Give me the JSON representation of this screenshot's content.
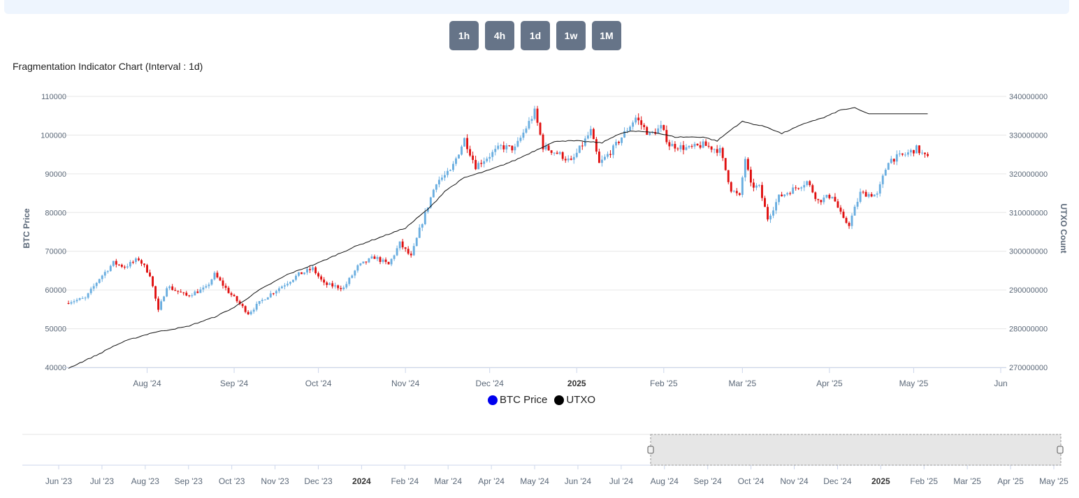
{
  "interval_buttons": [
    "1h",
    "4h",
    "1d",
    "1w",
    "1M"
  ],
  "chart_data": {
    "type": "candlestick",
    "title": "Fragmentation Indicator Chart (Interval : 1d)",
    "ylabel_left": "BTC Price",
    "ylabel_right": "UTXO Count",
    "y_left_range": [
      40000,
      110000
    ],
    "y_right_range": [
      270000000,
      340000000
    ],
    "y_left_ticks": [
      "110000",
      "100000",
      "90000",
      "80000",
      "70000",
      "60000",
      "50000",
      "40000"
    ],
    "y_right_ticks": [
      "340000000",
      "330000000",
      "320000000",
      "310000000",
      "300000000",
      "290000000",
      "280000000",
      "270000000"
    ],
    "x_range": [
      "2024-07-04",
      "2025-06-01"
    ],
    "x_ticks": [
      {
        "date": "2024-08-01",
        "label": "Aug '24"
      },
      {
        "date": "2024-09-01",
        "label": "Sep '24"
      },
      {
        "date": "2024-10-01",
        "label": "Oct '24"
      },
      {
        "date": "2024-11-01",
        "label": "Nov '24"
      },
      {
        "date": "2024-12-01",
        "label": "Dec '24"
      },
      {
        "date": "2025-01-01",
        "label": "2025",
        "bold": true
      },
      {
        "date": "2025-02-01",
        "label": "Feb '25"
      },
      {
        "date": "2025-03-01",
        "label": "Mar '25"
      },
      {
        "date": "2025-04-01",
        "label": "Apr '25"
      },
      {
        "date": "2025-05-01",
        "label": "May '25"
      },
      {
        "date": "2025-06-01",
        "label": "Jun"
      }
    ],
    "grid": true,
    "legend": {
      "position": "bottom-center",
      "items": [
        {
          "name": "BTC Price",
          "color": "#0000ee"
        },
        {
          "name": "UTXO",
          "color": "#000000"
        }
      ]
    },
    "candle_colors": {
      "up": "#6aaee0",
      "down": "#e01010"
    },
    "btc_close_keypoints": [
      [
        "2024-07-04",
        57000
      ],
      [
        "2024-07-10",
        57800
      ],
      [
        "2024-07-15",
        63000
      ],
      [
        "2024-07-20",
        67000
      ],
      [
        "2024-07-24",
        66000
      ],
      [
        "2024-07-29",
        68000
      ],
      [
        "2024-08-02",
        64000
      ],
      [
        "2024-08-05",
        54500
      ],
      [
        "2024-08-08",
        61000
      ],
      [
        "2024-08-15",
        58500
      ],
      [
        "2024-08-22",
        60500
      ],
      [
        "2024-08-25",
        64000
      ],
      [
        "2024-08-30",
        59500
      ],
      [
        "2024-09-06",
        54000
      ],
      [
        "2024-09-12",
        58000
      ],
      [
        "2024-09-18",
        61000
      ],
      [
        "2024-09-24",
        64000
      ],
      [
        "2024-09-29",
        65500
      ],
      [
        "2024-10-03",
        61500
      ],
      [
        "2024-10-10",
        60500
      ],
      [
        "2024-10-15",
        66000
      ],
      [
        "2024-10-21",
        68500
      ],
      [
        "2024-10-26",
        66500
      ],
      [
        "2024-10-30",
        72000
      ],
      [
        "2024-11-03",
        68500
      ],
      [
        "2024-11-06",
        75500
      ],
      [
        "2024-11-12",
        88000
      ],
      [
        "2024-11-17",
        90500
      ],
      [
        "2024-11-22",
        99000
      ],
      [
        "2024-11-26",
        92000
      ],
      [
        "2024-12-05",
        97000
      ],
      [
        "2024-12-10",
        96500
      ],
      [
        "2024-12-17",
        106000
      ],
      [
        "2024-12-20",
        97000
      ],
      [
        "2024-12-26",
        95000
      ],
      [
        "2024-12-30",
        93000
      ],
      [
        "2025-01-06",
        101000
      ],
      [
        "2025-01-09",
        92500
      ],
      [
        "2025-01-14",
        96500
      ],
      [
        "2025-01-20",
        102500
      ],
      [
        "2025-01-22",
        104500
      ],
      [
        "2025-01-27",
        100000
      ],
      [
        "2025-01-31",
        102000
      ],
      [
        "2025-02-03",
        97500
      ],
      [
        "2025-02-10",
        96500
      ],
      [
        "2025-02-15",
        97500
      ],
      [
        "2025-02-21",
        96000
      ],
      [
        "2025-02-25",
        86000
      ],
      [
        "2025-02-28",
        84000
      ],
      [
        "2025-03-02",
        94000
      ],
      [
        "2025-03-04",
        87000
      ],
      [
        "2025-03-07",
        86500
      ],
      [
        "2025-03-10",
        78500
      ],
      [
        "2025-03-14",
        84000
      ],
      [
        "2025-03-19",
        86000
      ],
      [
        "2025-03-24",
        88000
      ],
      [
        "2025-03-28",
        83000
      ],
      [
        "2025-04-02",
        84500
      ],
      [
        "2025-04-06",
        78000
      ],
      [
        "2025-04-08",
        77000
      ],
      [
        "2025-04-12",
        85000
      ],
      [
        "2025-04-18",
        84500
      ],
      [
        "2025-04-22",
        93500
      ],
      [
        "2025-04-28",
        95000
      ],
      [
        "2025-05-02",
        96500
      ],
      [
        "2025-05-05",
        94500
      ],
      [
        "2025-05-06",
        94000
      ]
    ],
    "utxo_keypoints": [
      [
        "2024-07-04",
        269800000
      ],
      [
        "2024-07-15",
        273500000
      ],
      [
        "2024-07-20",
        275500000
      ],
      [
        "2024-07-25",
        277000000
      ],
      [
        "2024-08-03",
        279000000
      ],
      [
        "2024-08-15",
        280500000
      ],
      [
        "2024-08-25",
        283000000
      ],
      [
        "2024-09-01",
        285500000
      ],
      [
        "2024-09-10",
        290000000
      ],
      [
        "2024-09-20",
        294000000
      ],
      [
        "2024-10-01",
        297000000
      ],
      [
        "2024-10-15",
        301500000
      ],
      [
        "2024-11-01",
        306000000
      ],
      [
        "2024-11-10",
        311500000
      ],
      [
        "2024-11-15",
        315500000
      ],
      [
        "2024-11-22",
        319000000
      ],
      [
        "2024-12-01",
        321000000
      ],
      [
        "2024-12-10",
        323500000
      ],
      [
        "2024-12-20",
        327000000
      ],
      [
        "2024-12-25",
        328500000
      ],
      [
        "2025-01-01",
        328500000
      ],
      [
        "2025-01-10",
        328000000
      ],
      [
        "2025-01-15",
        330000000
      ],
      [
        "2025-01-20",
        331000000
      ],
      [
        "2025-01-28",
        330800000
      ],
      [
        "2025-02-05",
        329500000
      ],
      [
        "2025-02-15",
        329500000
      ],
      [
        "2025-02-20",
        328500000
      ],
      [
        "2025-02-26",
        332000000
      ],
      [
        "2025-03-01",
        333500000
      ],
      [
        "2025-03-10",
        332000000
      ],
      [
        "2025-03-15",
        330400000
      ],
      [
        "2025-03-20",
        332000000
      ],
      [
        "2025-03-25",
        333500000
      ],
      [
        "2025-03-30",
        334500000
      ],
      [
        "2025-04-05",
        336500000
      ],
      [
        "2025-04-10",
        337000000
      ],
      [
        "2025-04-15",
        335500000
      ],
      [
        "2025-05-06",
        335500000
      ]
    ]
  },
  "navigator": {
    "x_ticks": [
      {
        "label": "Jun '23"
      },
      {
        "label": "Jul '23"
      },
      {
        "label": "Aug '23"
      },
      {
        "label": "Sep '23"
      },
      {
        "label": "Oct '23"
      },
      {
        "label": "Nov '23"
      },
      {
        "label": "Dec '23"
      },
      {
        "label": "2024",
        "bold": true
      },
      {
        "label": "Feb '24"
      },
      {
        "label": "Mar '24"
      },
      {
        "label": "Apr '24"
      },
      {
        "label": "May '24"
      },
      {
        "label": "Jun '24"
      },
      {
        "label": "Jul '24"
      },
      {
        "label": "Aug '24"
      },
      {
        "label": "Sep '24"
      },
      {
        "label": "Oct '24"
      },
      {
        "label": "Nov '24"
      },
      {
        "label": "Dec '24"
      },
      {
        "label": "2025",
        "bold": true
      },
      {
        "label": "Feb '25"
      },
      {
        "label": "Mar '25"
      },
      {
        "label": "Apr '25"
      },
      {
        "label": "May '25"
      }
    ],
    "selection_start": 0.605,
    "selection_end": 1.0
  }
}
